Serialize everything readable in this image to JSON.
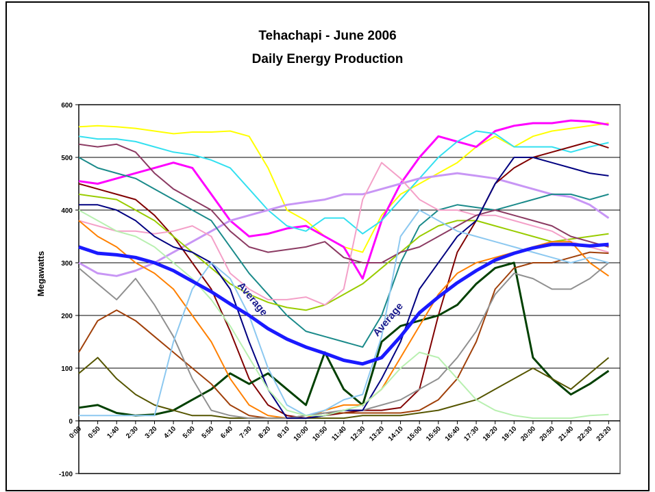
{
  "chart_data": {
    "type": "line",
    "title": "Tehachapi - June 2006",
    "subtitle": "Daily Energy Production",
    "y_label": "Megawatts",
    "annotations": [
      "Average",
      "Average"
    ],
    "categories": [
      "0:00",
      "0:50",
      "1:40",
      "2:30",
      "3:20",
      "4:10",
      "5:00",
      "5:50",
      "6:40",
      "7:30",
      "8:20",
      "9:10",
      "10:00",
      "10:50",
      "11:40",
      "12:30",
      "13:20",
      "14:10",
      "15:00",
      "15:50",
      "16:40",
      "17:30",
      "18:20",
      "19:10",
      "20:00",
      "20:50",
      "21:40",
      "22:30",
      "23:20"
    ],
    "ylim": [
      -100,
      600
    ],
    "yticks": [
      -100,
      0,
      100,
      200,
      300,
      400,
      500,
      600
    ],
    "grid": true,
    "series": [
      {
        "color": "#ffff00",
        "line_width": 2,
        "values": [
          558,
          560,
          558,
          555,
          550,
          545,
          548,
          548,
          550,
          540,
          480,
          400,
          380,
          350,
          330,
          320,
          390,
          430,
          450,
          470,
          490,
          520,
          540,
          520,
          540,
          550,
          555,
          560,
          565
        ]
      },
      {
        "color": "#ff00ff",
        "line_width": 3,
        "values": [
          455,
          450,
          460,
          470,
          480,
          490,
          480,
          430,
          380,
          350,
          355,
          365,
          370,
          350,
          330,
          270,
          380,
          450,
          500,
          540,
          530,
          520,
          550,
          560,
          565,
          565,
          570,
          568,
          562
        ]
      },
      {
        "color": "#33e0f0",
        "line_width": 2,
        "values": [
          540,
          535,
          535,
          530,
          520,
          510,
          505,
          495,
          480,
          440,
          400,
          370,
          360,
          385,
          385,
          355,
          380,
          420,
          460,
          500,
          530,
          550,
          545,
          520,
          520,
          520,
          510,
          520,
          528
        ]
      },
      {
        "color": "#c896f5",
        "line_width": 3,
        "values": [
          300,
          280,
          275,
          285,
          300,
          320,
          340,
          360,
          380,
          390,
          400,
          410,
          415,
          420,
          430,
          430,
          440,
          450,
          460,
          465,
          470,
          465,
          460,
          450,
          440,
          430,
          425,
          410,
          385
        ]
      },
      {
        "color": "#800000",
        "line_width": 2,
        "values": [
          450,
          440,
          430,
          420,
          390,
          350,
          300,
          250,
          170,
          80,
          30,
          10,
          5,
          10,
          15,
          20,
          20,
          25,
          60,
          200,
          320,
          380,
          450,
          480,
          500,
          510,
          520,
          530,
          518
        ]
      },
      {
        "color": "#1a8a8a",
        "line_width": 2,
        "values": [
          500,
          480,
          470,
          460,
          440,
          420,
          400,
          380,
          330,
          280,
          240,
          200,
          170,
          160,
          150,
          140,
          200,
          300,
          370,
          400,
          410,
          405,
          400,
          410,
          420,
          430,
          430,
          420,
          430
        ]
      },
      {
        "color": "#99cc00",
        "line_width": 2,
        "values": [
          430,
          425,
          420,
          400,
          380,
          350,
          320,
          290,
          260,
          240,
          225,
          215,
          210,
          220,
          240,
          260,
          290,
          320,
          350,
          370,
          380,
          380,
          370,
          360,
          350,
          340,
          345,
          350,
          355
        ]
      },
      {
        "color": "#f4a0c8",
        "line_width": 2,
        "values": [
          380,
          370,
          360,
          360,
          355,
          360,
          370,
          350,
          280,
          250,
          230,
          230,
          235,
          220,
          250,
          420,
          490,
          460,
          420,
          400,
          400,
          390,
          390,
          380,
          370,
          360,
          340,
          330,
          320
        ]
      },
      {
        "color": "#8b3a62",
        "line_width": 2,
        "values": [
          525,
          520,
          525,
          510,
          470,
          440,
          420,
          400,
          360,
          330,
          320,
          325,
          330,
          340,
          310,
          300,
          300,
          320,
          330,
          350,
          370,
          390,
          400,
          390,
          380,
          370,
          350,
          340,
          330
        ]
      },
      {
        "color": "#004000",
        "line_width": 3,
        "values": [
          25,
          30,
          15,
          10,
          12,
          20,
          40,
          60,
          90,
          70,
          90,
          60,
          30,
          130,
          60,
          30,
          150,
          180,
          190,
          200,
          220,
          260,
          290,
          300,
          120,
          80,
          50,
          70,
          95
        ]
      },
      {
        "color": "#a0400a",
        "line_width": 2,
        "values": [
          130,
          190,
          210,
          190,
          160,
          130,
          100,
          70,
          30,
          10,
          5,
          5,
          10,
          15,
          15,
          15,
          15,
          15,
          20,
          40,
          80,
          150,
          250,
          290,
          300,
          300,
          310,
          320,
          318
        ]
      },
      {
        "color": "#ff8000",
        "line_width": 2,
        "values": [
          380,
          350,
          330,
          300,
          280,
          250,
          200,
          150,
          80,
          30,
          10,
          5,
          5,
          20,
          30,
          30,
          60,
          120,
          180,
          240,
          280,
          300,
          310,
          320,
          330,
          340,
          340,
          300,
          275
        ]
      },
      {
        "color": "#555500",
        "line_width": 2,
        "values": [
          90,
          120,
          80,
          50,
          30,
          20,
          10,
          10,
          5,
          5,
          5,
          5,
          5,
          5,
          5,
          10,
          10,
          10,
          15,
          20,
          30,
          40,
          60,
          80,
          100,
          80,
          60,
          90,
          120
        ]
      },
      {
        "color": "#909090",
        "line_width": 2,
        "values": [
          290,
          260,
          230,
          270,
          220,
          160,
          80,
          20,
          10,
          5,
          5,
          5,
          10,
          15,
          20,
          20,
          30,
          40,
          60,
          80,
          120,
          170,
          240,
          280,
          270,
          250,
          250,
          270,
          300
        ]
      },
      {
        "color": "#000080",
        "line_width": 2,
        "values": [
          410,
          410,
          400,
          380,
          350,
          330,
          320,
          300,
          250,
          150,
          60,
          5,
          5,
          10,
          20,
          20,
          80,
          150,
          250,
          300,
          350,
          380,
          450,
          500,
          500,
          490,
          480,
          470,
          465
        ]
      },
      {
        "color": "#8cc8f0",
        "line_width": 2,
        "values": [
          10,
          10,
          10,
          10,
          10,
          150,
          250,
          300,
          270,
          200,
          100,
          30,
          10,
          20,
          40,
          50,
          160,
          350,
          400,
          380,
          360,
          350,
          340,
          330,
          320,
          310,
          300,
          310,
          300
        ]
      },
      {
        "color": "#b8f0b0",
        "line_width": 2,
        "values": [
          400,
          380,
          360,
          350,
          330,
          300,
          270,
          230,
          180,
          120,
          60,
          20,
          10,
          10,
          20,
          30,
          60,
          100,
          130,
          120,
          80,
          40,
          20,
          10,
          5,
          5,
          5,
          10,
          12
        ]
      },
      {
        "color": "#1a1aff",
        "line_width": 5,
        "values": [
          330,
          318,
          315,
          310,
          300,
          285,
          265,
          245,
          222,
          200,
          175,
          155,
          140,
          128,
          115,
          108,
          120,
          160,
          205,
          235,
          262,
          285,
          305,
          318,
          328,
          335,
          335,
          332,
          335
        ]
      }
    ]
  }
}
